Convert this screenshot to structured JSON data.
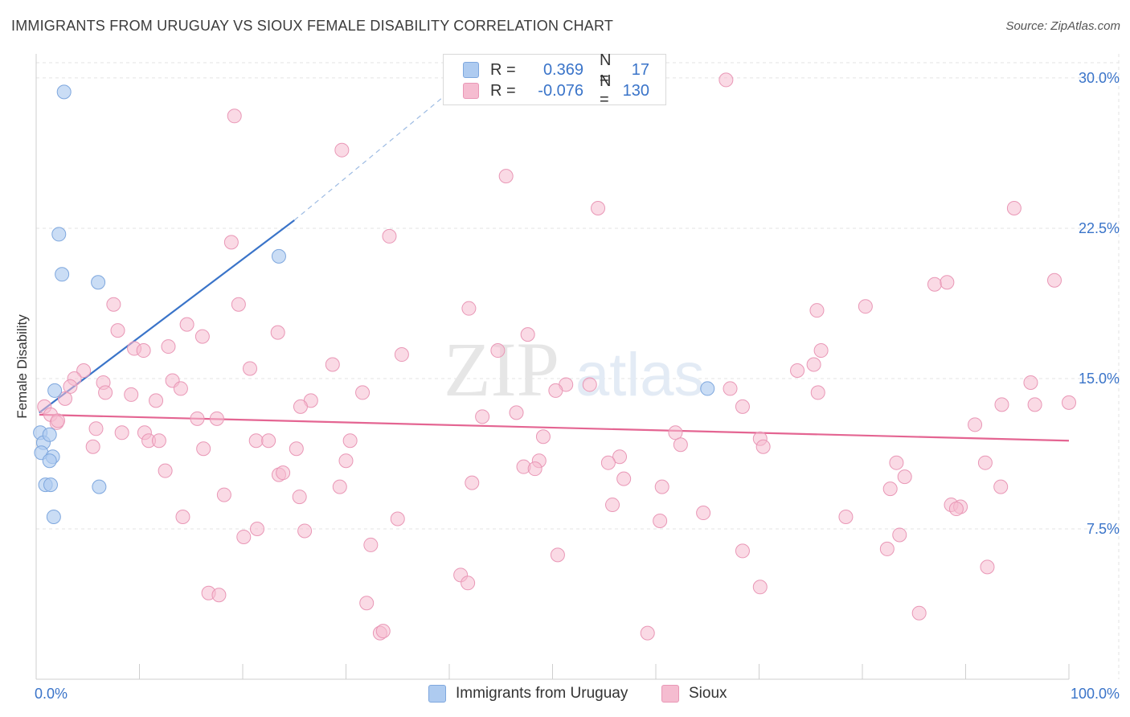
{
  "title": "IMMIGRANTS FROM URUGUAY VS SIOUX FEMALE DISABILITY CORRELATION CHART",
  "source": "Source: ZipAtlas.com",
  "watermark": {
    "zip": "ZIP",
    "atlas": "atlas"
  },
  "legend": {
    "rows": [
      {
        "r_label": "R =",
        "r_value": "0.369",
        "n_label": "N =",
        "n_value": "17"
      },
      {
        "r_label": "R =",
        "r_value": "-0.076",
        "n_label": "N =",
        "n_value": "130"
      }
    ]
  },
  "bottom_legend": [
    "Immigrants from Uruguay",
    "Sioux"
  ],
  "colors": {
    "blue": "#3a74c9",
    "blue_fill": "#aecbf0",
    "pink": "#e46592",
    "pink_fill": "#f5bcd0",
    "grid": "#e3e3e3"
  },
  "chart_data": {
    "type": "scatter",
    "title": "IMMIGRANTS FROM URUGUAY VS SIOUX FEMALE DISABILITY CORRELATION CHART",
    "xlabel": "",
    "ylabel": "Female Disability",
    "xlim": [
      0,
      100
    ],
    "ylim": [
      0,
      31.2
    ],
    "x_tick_labels": [
      "0.0%",
      "100.0%"
    ],
    "y_ticks": [
      7.5,
      15.0,
      22.5,
      30.0
    ],
    "y_tick_labels": [
      "7.5%",
      "15.0%",
      "22.5%",
      "30.0%"
    ],
    "grid": true,
    "series": [
      {
        "name": "Immigrants from Uruguay",
        "r": 0.369,
        "n": 17,
        "trend": {
          "x0": 0.3,
          "y0": 13.3,
          "x1": 25.0,
          "y1": 22.9,
          "x_dash_end": 40.0,
          "y_dash_end": 29.3
        },
        "points": [
          [
            2.7,
            29.3
          ],
          [
            2.2,
            22.2
          ],
          [
            2.5,
            20.2
          ],
          [
            6.0,
            19.8
          ],
          [
            23.5,
            21.1
          ],
          [
            1.8,
            14.4
          ],
          [
            0.4,
            12.3
          ],
          [
            0.7,
            11.8
          ],
          [
            0.5,
            11.3
          ],
          [
            1.3,
            12.2
          ],
          [
            1.6,
            11.1
          ],
          [
            1.3,
            10.9
          ],
          [
            0.9,
            9.7
          ],
          [
            1.4,
            9.7
          ],
          [
            6.1,
            9.6
          ],
          [
            1.7,
            8.1
          ],
          [
            65.0,
            14.5
          ]
        ]
      },
      {
        "name": "Sioux",
        "r": -0.076,
        "n": 130,
        "trend": {
          "x0": 0.3,
          "y0": 13.2,
          "x1": 100,
          "y1": 11.9
        },
        "points": [
          [
            19.2,
            28.1
          ],
          [
            66.8,
            29.9
          ],
          [
            29.6,
            26.4
          ],
          [
            45.5,
            25.1
          ],
          [
            54.4,
            23.5
          ],
          [
            94.7,
            23.5
          ],
          [
            34.2,
            22.1
          ],
          [
            18.9,
            21.8
          ],
          [
            87.0,
            19.7
          ],
          [
            88.2,
            19.8
          ],
          [
            98.6,
            19.9
          ],
          [
            7.5,
            18.7
          ],
          [
            19.6,
            18.7
          ],
          [
            41.9,
            18.5
          ],
          [
            75.6,
            18.4
          ],
          [
            80.3,
            18.6
          ],
          [
            14.6,
            17.7
          ],
          [
            7.9,
            17.4
          ],
          [
            23.4,
            17.3
          ],
          [
            16.1,
            17.1
          ],
          [
            47.6,
            17.2
          ],
          [
            9.5,
            16.5
          ],
          [
            10.4,
            16.4
          ],
          [
            12.8,
            16.6
          ],
          [
            35.4,
            16.2
          ],
          [
            44.7,
            16.4
          ],
          [
            76.0,
            16.4
          ],
          [
            4.6,
            15.4
          ],
          [
            20.7,
            15.5
          ],
          [
            28.7,
            15.7
          ],
          [
            75.3,
            15.7
          ],
          [
            73.7,
            15.4
          ],
          [
            3.7,
            15.0
          ],
          [
            13.2,
            14.9
          ],
          [
            6.5,
            14.8
          ],
          [
            51.3,
            14.7
          ],
          [
            53.6,
            14.7
          ],
          [
            96.3,
            14.8
          ],
          [
            3.3,
            14.6
          ],
          [
            14.0,
            14.5
          ],
          [
            31.6,
            14.3
          ],
          [
            50.3,
            14.4
          ],
          [
            67.2,
            14.5
          ],
          [
            75.7,
            14.3
          ],
          [
            6.7,
            14.3
          ],
          [
            9.2,
            14.2
          ],
          [
            11.6,
            13.9
          ],
          [
            2.8,
            14.0
          ],
          [
            26.6,
            13.9
          ],
          [
            25.6,
            13.6
          ],
          [
            68.4,
            13.6
          ],
          [
            93.5,
            13.7
          ],
          [
            96.7,
            13.7
          ],
          [
            100.0,
            13.8
          ],
          [
            0.8,
            13.6
          ],
          [
            1.4,
            13.2
          ],
          [
            15.6,
            13.0
          ],
          [
            17.5,
            13.0
          ],
          [
            43.2,
            13.1
          ],
          [
            46.5,
            13.3
          ],
          [
            2.0,
            12.8
          ],
          [
            2.1,
            12.9
          ],
          [
            5.8,
            12.5
          ],
          [
            8.3,
            12.3
          ],
          [
            10.5,
            12.3
          ],
          [
            49.1,
            12.1
          ],
          [
            61.9,
            12.3
          ],
          [
            90.9,
            12.7
          ],
          [
            10.9,
            11.9
          ],
          [
            11.9,
            11.9
          ],
          [
            21.3,
            11.9
          ],
          [
            22.5,
            11.9
          ],
          [
            30.4,
            11.9
          ],
          [
            70.1,
            12.0
          ],
          [
            5.5,
            11.6
          ],
          [
            16.2,
            11.5
          ],
          [
            25.2,
            11.5
          ],
          [
            62.4,
            11.7
          ],
          [
            70.4,
            11.6
          ],
          [
            56.5,
            11.1
          ],
          [
            30.0,
            10.9
          ],
          [
            48.7,
            10.9
          ],
          [
            55.4,
            10.8
          ],
          [
            83.3,
            10.8
          ],
          [
            91.9,
            10.8
          ],
          [
            47.2,
            10.6
          ],
          [
            48.3,
            10.5
          ],
          [
            12.5,
            10.4
          ],
          [
            23.5,
            10.2
          ],
          [
            23.9,
            10.3
          ],
          [
            84.1,
            10.1
          ],
          [
            56.9,
            10.0
          ],
          [
            42.2,
            9.8
          ],
          [
            29.4,
            9.6
          ],
          [
            60.6,
            9.6
          ],
          [
            82.7,
            9.5
          ],
          [
            93.4,
            9.6
          ],
          [
            18.2,
            9.2
          ],
          [
            25.5,
            9.1
          ],
          [
            55.8,
            8.7
          ],
          [
            88.6,
            8.7
          ],
          [
            89.5,
            8.6
          ],
          [
            89.1,
            8.5
          ],
          [
            14.2,
            8.1
          ],
          [
            35.0,
            8.0
          ],
          [
            64.6,
            8.3
          ],
          [
            78.4,
            8.1
          ],
          [
            60.4,
            7.9
          ],
          [
            21.4,
            7.5
          ],
          [
            26.0,
            7.4
          ],
          [
            20.1,
            7.1
          ],
          [
            83.6,
            7.2
          ],
          [
            32.4,
            6.7
          ],
          [
            82.4,
            6.5
          ],
          [
            68.4,
            6.4
          ],
          [
            50.5,
            6.2
          ],
          [
            92.1,
            5.6
          ],
          [
            41.1,
            5.2
          ],
          [
            41.8,
            4.8
          ],
          [
            70.1,
            4.6
          ],
          [
            16.7,
            4.3
          ],
          [
            17.7,
            4.2
          ],
          [
            32.0,
            3.8
          ],
          [
            85.5,
            3.3
          ],
          [
            33.3,
            2.3
          ],
          [
            33.6,
            2.4
          ],
          [
            59.2,
            2.3
          ]
        ]
      }
    ]
  }
}
